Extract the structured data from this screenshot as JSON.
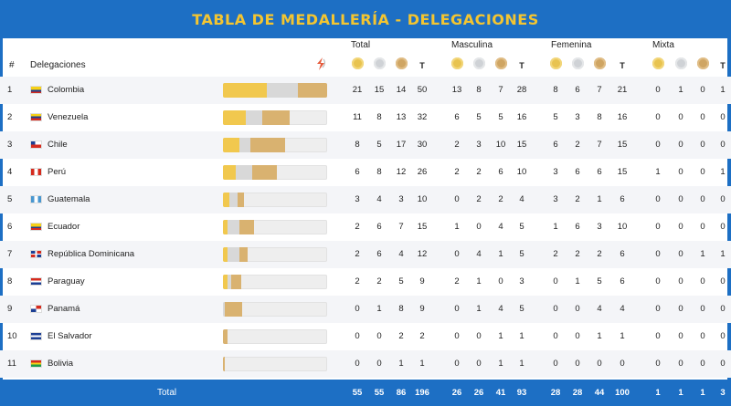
{
  "title": "TABLA DE MEDALLERÍA - DELEGACIONES",
  "headers": {
    "rank": "#",
    "delegation": "Delegaciones",
    "groups": [
      "Total",
      "Masculina",
      "Femenina",
      "Mixta"
    ],
    "t": "T"
  },
  "colors": {
    "header_bg": "#1d6fc4",
    "title": "#f3c531",
    "gold": "#f1c84e",
    "silver": "#d8d8d8",
    "bronze": "#d9b270"
  },
  "rows": [
    {
      "rank": "1",
      "name": "Colombia",
      "flag": "colombia-flag-icon",
      "total": [
        "21",
        "15",
        "14",
        "50"
      ],
      "masc": [
        "13",
        "8",
        "7",
        "28"
      ],
      "fem": [
        "8",
        "6",
        "7",
        "21"
      ],
      "mix": [
        "0",
        "1",
        "0",
        "1"
      ]
    },
    {
      "rank": "2",
      "name": "Venezuela",
      "flag": "venezuela-flag-icon",
      "total": [
        "11",
        "8",
        "13",
        "32"
      ],
      "masc": [
        "6",
        "5",
        "5",
        "16"
      ],
      "fem": [
        "5",
        "3",
        "8",
        "16"
      ],
      "mix": [
        "0",
        "0",
        "0",
        "0"
      ]
    },
    {
      "rank": "3",
      "name": "Chile",
      "flag": "chile-flag-icon",
      "total": [
        "8",
        "5",
        "17",
        "30"
      ],
      "masc": [
        "2",
        "3",
        "10",
        "15"
      ],
      "fem": [
        "6",
        "2",
        "7",
        "15"
      ],
      "mix": [
        "0",
        "0",
        "0",
        "0"
      ]
    },
    {
      "rank": "4",
      "name": "Perú",
      "flag": "peru-flag-icon",
      "total": [
        "6",
        "8",
        "12",
        "26"
      ],
      "masc": [
        "2",
        "2",
        "6",
        "10"
      ],
      "fem": [
        "3",
        "6",
        "6",
        "15"
      ],
      "mix": [
        "1",
        "0",
        "0",
        "1"
      ]
    },
    {
      "rank": "5",
      "name": "Guatemala",
      "flag": "guatemala-flag-icon",
      "total": [
        "3",
        "4",
        "3",
        "10"
      ],
      "masc": [
        "0",
        "2",
        "2",
        "4"
      ],
      "fem": [
        "3",
        "2",
        "1",
        "6"
      ],
      "mix": [
        "0",
        "0",
        "0",
        "0"
      ]
    },
    {
      "rank": "6",
      "name": "Ecuador",
      "flag": "ecuador-flag-icon",
      "total": [
        "2",
        "6",
        "7",
        "15"
      ],
      "masc": [
        "1",
        "0",
        "4",
        "5"
      ],
      "fem": [
        "1",
        "6",
        "3",
        "10"
      ],
      "mix": [
        "0",
        "0",
        "0",
        "0"
      ]
    },
    {
      "rank": "7",
      "name": "República Dominicana",
      "flag": "dominican-republic-flag-icon",
      "total": [
        "2",
        "6",
        "4",
        "12"
      ],
      "masc": [
        "0",
        "4",
        "1",
        "5"
      ],
      "fem": [
        "2",
        "2",
        "2",
        "6"
      ],
      "mix": [
        "0",
        "0",
        "1",
        "1"
      ]
    },
    {
      "rank": "8",
      "name": "Paraguay",
      "flag": "paraguay-flag-icon",
      "total": [
        "2",
        "2",
        "5",
        "9"
      ],
      "masc": [
        "2",
        "1",
        "0",
        "3"
      ],
      "fem": [
        "0",
        "1",
        "5",
        "6"
      ],
      "mix": [
        "0",
        "0",
        "0",
        "0"
      ]
    },
    {
      "rank": "9",
      "name": "Panamá",
      "flag": "panama-flag-icon",
      "total": [
        "0",
        "1",
        "8",
        "9"
      ],
      "masc": [
        "0",
        "1",
        "4",
        "5"
      ],
      "fem": [
        "0",
        "0",
        "4",
        "4"
      ],
      "mix": [
        "0",
        "0",
        "0",
        "0"
      ]
    },
    {
      "rank": "10",
      "name": "El Salvador",
      "flag": "el-salvador-flag-icon",
      "total": [
        "0",
        "0",
        "2",
        "2"
      ],
      "masc": [
        "0",
        "0",
        "1",
        "1"
      ],
      "fem": [
        "0",
        "0",
        "1",
        "1"
      ],
      "mix": [
        "0",
        "0",
        "0",
        "0"
      ]
    },
    {
      "rank": "11",
      "name": "Bolivia",
      "flag": "bolivia-flag-icon",
      "total": [
        "0",
        "0",
        "1",
        "1"
      ],
      "masc": [
        "0",
        "0",
        "1",
        "1"
      ],
      "fem": [
        "0",
        "0",
        "0",
        "0"
      ],
      "mix": [
        "0",
        "0",
        "0",
        "0"
      ]
    }
  ],
  "footer": {
    "label": "Total",
    "total": [
      "55",
      "55",
      "86",
      "196"
    ],
    "masc": [
      "26",
      "26",
      "41",
      "93"
    ],
    "fem": [
      "28",
      "28",
      "44",
      "100"
    ],
    "mix": [
      "1",
      "1",
      "1",
      "3"
    ]
  }
}
